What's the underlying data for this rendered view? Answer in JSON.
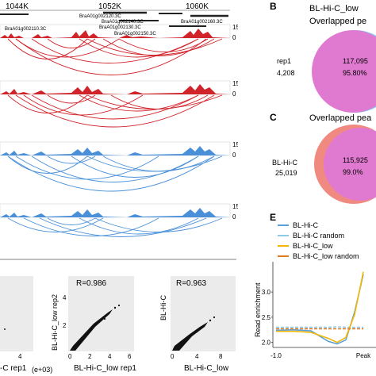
{
  "coords": [
    "1044K",
    "1052K",
    "1060K"
  ],
  "genes": [
    "BraA01g002120.3C",
    "BraA01g002140.3C",
    "BraA01g002160.3C",
    "BraA01g002110.3C",
    "BraA01g002130.3C",
    "BraA01g002150.3C"
  ],
  "track_scale": {
    "max": "15",
    "min": "0"
  },
  "panel_B": {
    "letter": "B",
    "title_line1": "BL-Hi-C_low",
    "title_line2": "Overlapped pe",
    "left_label": "rep1",
    "left_count": "4,208",
    "overlap_count": "117,095",
    "overlap_pct": "95.80%"
  },
  "panel_C": {
    "letter": "C",
    "title": "Overlapped pea",
    "left_label": "BL-Hi-C",
    "left_count": "25,019",
    "overlap_count": "115,925",
    "overlap_pct": "99.0%"
  },
  "scatter_plots": [
    {
      "xlabel": "-C rep1",
      "xlabel_extra": "(e+03)",
      "tick": "4"
    },
    {
      "r_label": "R=0.986",
      "xlabel": "BL-Hi-C_low rep1",
      "ylabel": "BL-Hi-C_low rep2",
      "x_ticks": [
        "0",
        "2",
        "4",
        "6"
      ],
      "y_ticks": [
        "2",
        "4"
      ]
    },
    {
      "r_label": "R=0.963",
      "xlabel": "BL-Hi-C_low",
      "ylabel": "BL-Hi-C",
      "x_ticks": [
        "0",
        "4",
        "8"
      ]
    }
  ],
  "panel_E": {
    "letter": "E"
  },
  "colors": {
    "red": "#d1232a",
    "blue": "#4a90d9",
    "overlap_pink": "#e07ad0",
    "venn_red": "#f08a80",
    "bl_hic": "#5aa0d8",
    "bl_hic_random": "#8ecae6",
    "bl_hic_low": "#f2b705",
    "bl_hic_low_random": "#e07b24"
  },
  "chart_data": {
    "type": "line",
    "ylabel": "Read enrichment",
    "x_ticks": [
      "-1.0",
      "Peak"
    ],
    "y_ticks": [
      "2.0",
      "2.5",
      "3.0"
    ],
    "ylim": [
      1.9,
      3.6
    ],
    "legend": [
      "BL-Hi-C",
      "BL-Hi-C random",
      "BL-Hi-C_low",
      "BL-Hi-C_low random"
    ],
    "x": [
      -1.0,
      -0.8,
      -0.6,
      -0.4,
      -0.3,
      -0.2,
      -0.1,
      0.0
    ],
    "series": [
      {
        "name": "BL-Hi-C",
        "values": [
          2.24,
          2.25,
          2.23,
          2.02,
          1.97,
          2.05,
          2.6,
          3.35
        ]
      },
      {
        "name": "BL-Hi-C random",
        "values": [
          2.3,
          2.3,
          2.3,
          2.3,
          2.31,
          2.3,
          2.3,
          2.3
        ]
      },
      {
        "name": "BL-Hi-C_low",
        "values": [
          2.22,
          2.22,
          2.2,
          2.08,
          2.0,
          2.1,
          2.55,
          3.4
        ]
      },
      {
        "name": "BL-Hi-C_low random",
        "values": [
          2.27,
          2.27,
          2.27,
          2.27,
          2.27,
          2.27,
          2.27,
          2.27
        ]
      }
    ]
  }
}
